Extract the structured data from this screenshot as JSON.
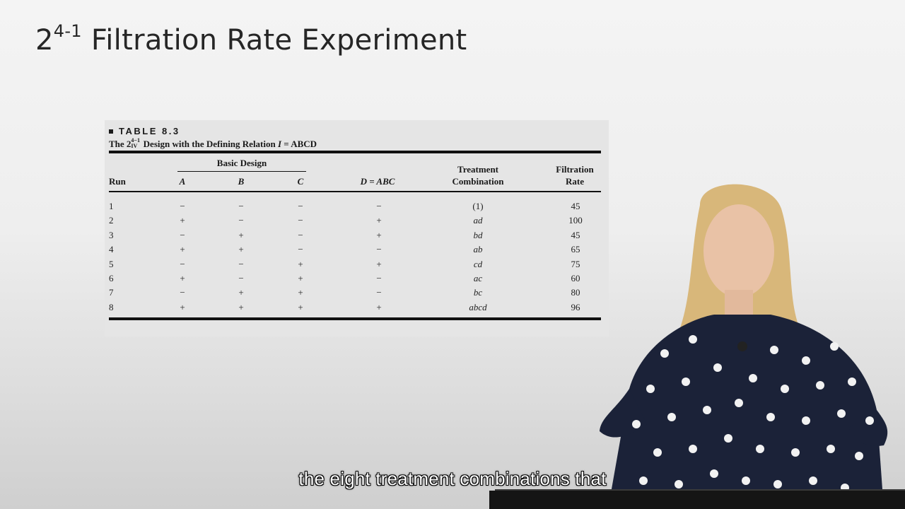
{
  "slide": {
    "title_base": "2",
    "title_sup": "4-1",
    "title_rest": " Filtration Rate Experiment"
  },
  "table": {
    "label": "TABLE 8.3",
    "caption_prefix": "The 2",
    "caption_sup": "4−1",
    "caption_sub": "IV",
    "caption_rest": " Design with the Defining Relation ",
    "caption_relation_var": "I",
    "caption_relation_rest": " = ABCD",
    "group_header": "Basic Design",
    "headers": {
      "run": "Run",
      "a": "A",
      "b": "B",
      "c": "C",
      "d": "D = ABC",
      "treatment_line1": "Treatment",
      "treatment_line2": "Combination",
      "rate_line1": "Filtration",
      "rate_line2": "Rate"
    },
    "rows": [
      {
        "run": "1",
        "a": "−",
        "b": "−",
        "c": "−",
        "d": "−",
        "treatment": "(1)",
        "rate": "45"
      },
      {
        "run": "2",
        "a": "+",
        "b": "−",
        "c": "−",
        "d": "+",
        "treatment": "ad",
        "rate": "100"
      },
      {
        "run": "3",
        "a": "−",
        "b": "+",
        "c": "−",
        "d": "+",
        "treatment": "bd",
        "rate": "45"
      },
      {
        "run": "4",
        "a": "+",
        "b": "+",
        "c": "−",
        "d": "−",
        "treatment": "ab",
        "rate": "65"
      },
      {
        "run": "5",
        "a": "−",
        "b": "−",
        "c": "+",
        "d": "+",
        "treatment": "cd",
        "rate": "75"
      },
      {
        "run": "6",
        "a": "+",
        "b": "−",
        "c": "+",
        "d": "−",
        "treatment": "ac",
        "rate": "60"
      },
      {
        "run": "7",
        "a": "−",
        "b": "+",
        "c": "+",
        "d": "−",
        "treatment": "bc",
        "rate": "80"
      },
      {
        "run": "8",
        "a": "+",
        "b": "+",
        "c": "+",
        "d": "+",
        "treatment": "abcd",
        "rate": "96"
      }
    ]
  },
  "subtitle": "the eight treatment combinations that",
  "colors": {
    "background": "#eeeeee",
    "table_card": "#e5e5e5",
    "text": "#262626"
  }
}
